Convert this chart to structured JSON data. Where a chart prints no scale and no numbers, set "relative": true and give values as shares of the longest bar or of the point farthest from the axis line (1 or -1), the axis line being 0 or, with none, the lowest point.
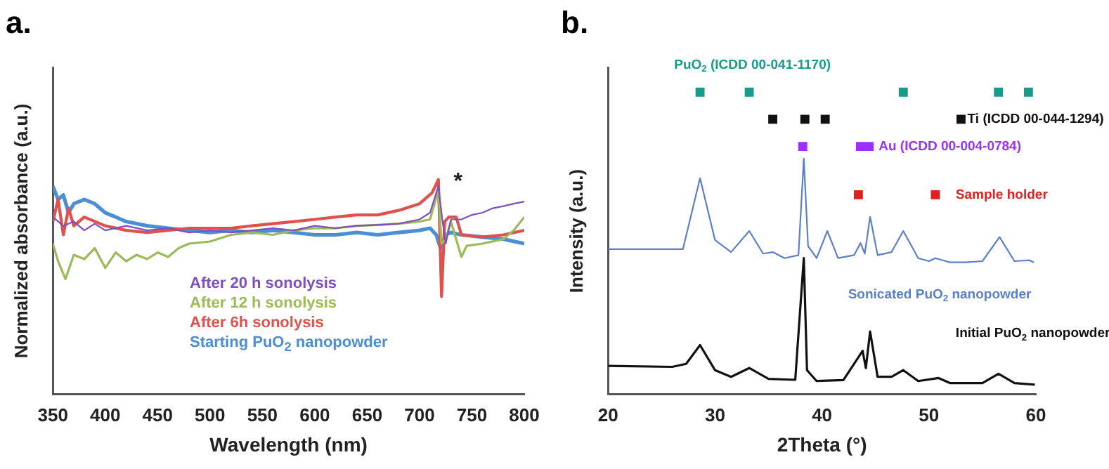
{
  "chart_data": [
    {
      "type": "line",
      "title": "a.",
      "xlabel": "Wavelength (nm)",
      "ylabel": "Normalized absorbance (a.u.)",
      "relative": true,
      "xlim": [
        350,
        800
      ],
      "xticks": [
        350,
        400,
        450,
        500,
        550,
        600,
        650,
        700,
        750,
        800
      ],
      "tick_labels": "x",
      "marker": "none",
      "legend": "bottom",
      "annotations": [
        {
          "text": "*",
          "x": 718,
          "y": 1.0
        }
      ],
      "series": [
        {
          "name": "After 20 h sonolysis",
          "color": "#7f4fc0",
          "x": [
            350,
            360,
            370,
            380,
            390,
            400,
            420,
            440,
            460,
            480,
            500,
            520,
            540,
            560,
            580,
            600,
            620,
            640,
            660,
            680,
            700,
            710,
            718,
            722,
            725,
            730,
            740,
            750,
            760,
            770,
            780,
            790,
            800
          ],
          "values": [
            0.825,
            0.784,
            0.804,
            0.763,
            0.794,
            0.763,
            0.784,
            0.763,
            0.773,
            0.753,
            0.763,
            0.753,
            0.763,
            0.773,
            0.763,
            0.784,
            0.773,
            0.784,
            0.788,
            0.794,
            0.814,
            0.845,
            0.969,
            0.804,
            0.701,
            0.814,
            0.814,
            0.835,
            0.845,
            0.866,
            0.876,
            0.887,
            0.897
          ]
        },
        {
          "name": "After 12 h sonolysis",
          "color": "#9bbb59",
          "x": [
            350,
            355,
            362,
            370,
            380,
            390,
            400,
            410,
            420,
            430,
            440,
            450,
            460,
            470,
            480,
            500,
            520,
            540,
            560,
            580,
            600,
            620,
            640,
            660,
            680,
            700,
            710,
            718,
            721,
            725,
            730,
            740,
            745,
            760,
            780,
            790,
            800
          ],
          "values": [
            0.701,
            0.619,
            0.536,
            0.649,
            0.629,
            0.68,
            0.588,
            0.66,
            0.619,
            0.649,
            0.629,
            0.66,
            0.639,
            0.68,
            0.701,
            0.711,
            0.742,
            0.753,
            0.742,
            0.763,
            0.773,
            0.773,
            0.784,
            0.788,
            0.794,
            0.804,
            0.814,
            0.948,
            0.701,
            0.722,
            0.804,
            0.639,
            0.691,
            0.701,
            0.722,
            0.763,
            0.825
          ]
        },
        {
          "name": "After 6h sonolysis",
          "color": "#e0504d",
          "x": [
            350,
            355,
            360,
            365,
            370,
            380,
            400,
            420,
            440,
            460,
            480,
            500,
            520,
            540,
            560,
            580,
            600,
            620,
            640,
            660,
            680,
            700,
            712,
            718,
            721,
            724,
            728,
            735,
            740,
            760,
            780,
            800
          ],
          "values": [
            0.804,
            0.907,
            0.742,
            0.866,
            0.784,
            0.825,
            0.784,
            0.763,
            0.753,
            0.763,
            0.773,
            0.773,
            0.773,
            0.784,
            0.794,
            0.804,
            0.814,
            0.825,
            0.835,
            0.835,
            0.856,
            0.887,
            0.938,
            1.0,
            0.454,
            0.804,
            0.825,
            0.825,
            0.742,
            0.732,
            0.742,
            0.763
          ]
        },
        {
          "name": "Starting PuO$_{2}$ nanopowder",
          "color": "#4a8fd4",
          "x": [
            350,
            355,
            360,
            365,
            370,
            380,
            390,
            400,
            410,
            420,
            440,
            460,
            480,
            500,
            520,
            540,
            560,
            580,
            600,
            620,
            640,
            660,
            680,
            700,
            710,
            716,
            720,
            725,
            730,
            740,
            760,
            780,
            800
          ],
          "values": [
            0.969,
            0.907,
            0.928,
            0.845,
            0.887,
            0.907,
            0.887,
            0.845,
            0.825,
            0.804,
            0.784,
            0.773,
            0.763,
            0.753,
            0.763,
            0.753,
            0.763,
            0.753,
            0.742,
            0.742,
            0.753,
            0.742,
            0.753,
            0.763,
            0.773,
            0.742,
            0.68,
            0.742,
            0.753,
            0.742,
            0.732,
            0.722,
            0.701
          ]
        }
      ]
    },
    {
      "type": "line",
      "title": "b.",
      "xlabel": "2Theta (°)",
      "ylabel": "Intensity (a.u.)",
      "relative": true,
      "xlim": [
        20,
        60
      ],
      "xticks": [
        20,
        30,
        40,
        50,
        60
      ],
      "tick_labels": "x",
      "marker": "none",
      "legend": "right",
      "series": [
        {
          "name": "Sonicated PuO$_{2}$ nanopowder",
          "color": "#5b80c8",
          "x": [
            20,
            27,
            28.6,
            30,
            31.5,
            33.2,
            34.5,
            35.4,
            36.5,
            37.8,
            38.3,
            38.7,
            39.5,
            40.5,
            41.5,
            43,
            43.6,
            44,
            44.5,
            45.2,
            46.5,
            47.6,
            49,
            50,
            50.6,
            52,
            53.4,
            55,
            56.6,
            58,
            59.4,
            59.8
          ],
          "values": [
            0.48,
            0.48,
            0.715,
            0.51,
            0.47,
            0.54,
            0.465,
            0.47,
            0.45,
            0.46,
            0.78,
            0.49,
            0.45,
            0.54,
            0.45,
            0.46,
            0.5,
            0.465,
            0.587,
            0.46,
            0.47,
            0.54,
            0.45,
            0.44,
            0.45,
            0.436,
            0.436,
            0.44,
            0.52,
            0.44,
            0.443,
            0.436
          ]
        },
        {
          "name": "Initial PuO$_{2}$ nanopowder",
          "color": "#111111",
          "x": [
            20,
            26,
            27.3,
            28.6,
            30,
            31.5,
            33.2,
            35,
            37.5,
            38.3,
            38.6,
            39.5,
            42,
            43.8,
            44.1,
            44.5,
            45.2,
            46.5,
            47.6,
            49,
            50.9,
            52,
            55,
            56.5,
            58,
            59.9
          ],
          "values": [
            0.093,
            0.09,
            0.1,
            0.162,
            0.079,
            0.057,
            0.086,
            0.05,
            0.047,
            0.45,
            0.079,
            0.043,
            0.046,
            0.143,
            0.086,
            0.207,
            0.057,
            0.057,
            0.079,
            0.043,
            0.053,
            0.036,
            0.036,
            0.067,
            0.036,
            0.031
          ]
        },
        {
          "type": "scatter",
          "marker": "square",
          "name": "PuO$_{2}$ (ICDD 00-041-1170)",
          "color": "#1a9a8a",
          "x": [
            28.6,
            33.2,
            47.6,
            56.5,
            59.3
          ],
          "values": [
            1,
            1,
            1,
            1,
            1
          ]
        },
        {
          "type": "scatter",
          "marker": "square",
          "name": "Ti (ICDD 00-044-1294)",
          "color": "#111111",
          "x": [
            35.4,
            38.4,
            40.3,
            53.0
          ],
          "values": [
            0.91,
            0.91,
            0.91,
            0.91
          ]
        },
        {
          "type": "scatter",
          "marker": "square",
          "name": "Au (ICDD 00-004-0784)",
          "color": "#9b30ff",
          "x": [
            38.2,
            43.6,
            44.4
          ],
          "values": [
            0.82,
            0.82,
            0.82
          ]
        },
        {
          "type": "scatter",
          "marker": "square",
          "name": "Sample holder",
          "color": "#e02020",
          "x": [
            43.4,
            50.6
          ],
          "values": [
            0.66,
            0.66
          ]
        }
      ]
    }
  ]
}
